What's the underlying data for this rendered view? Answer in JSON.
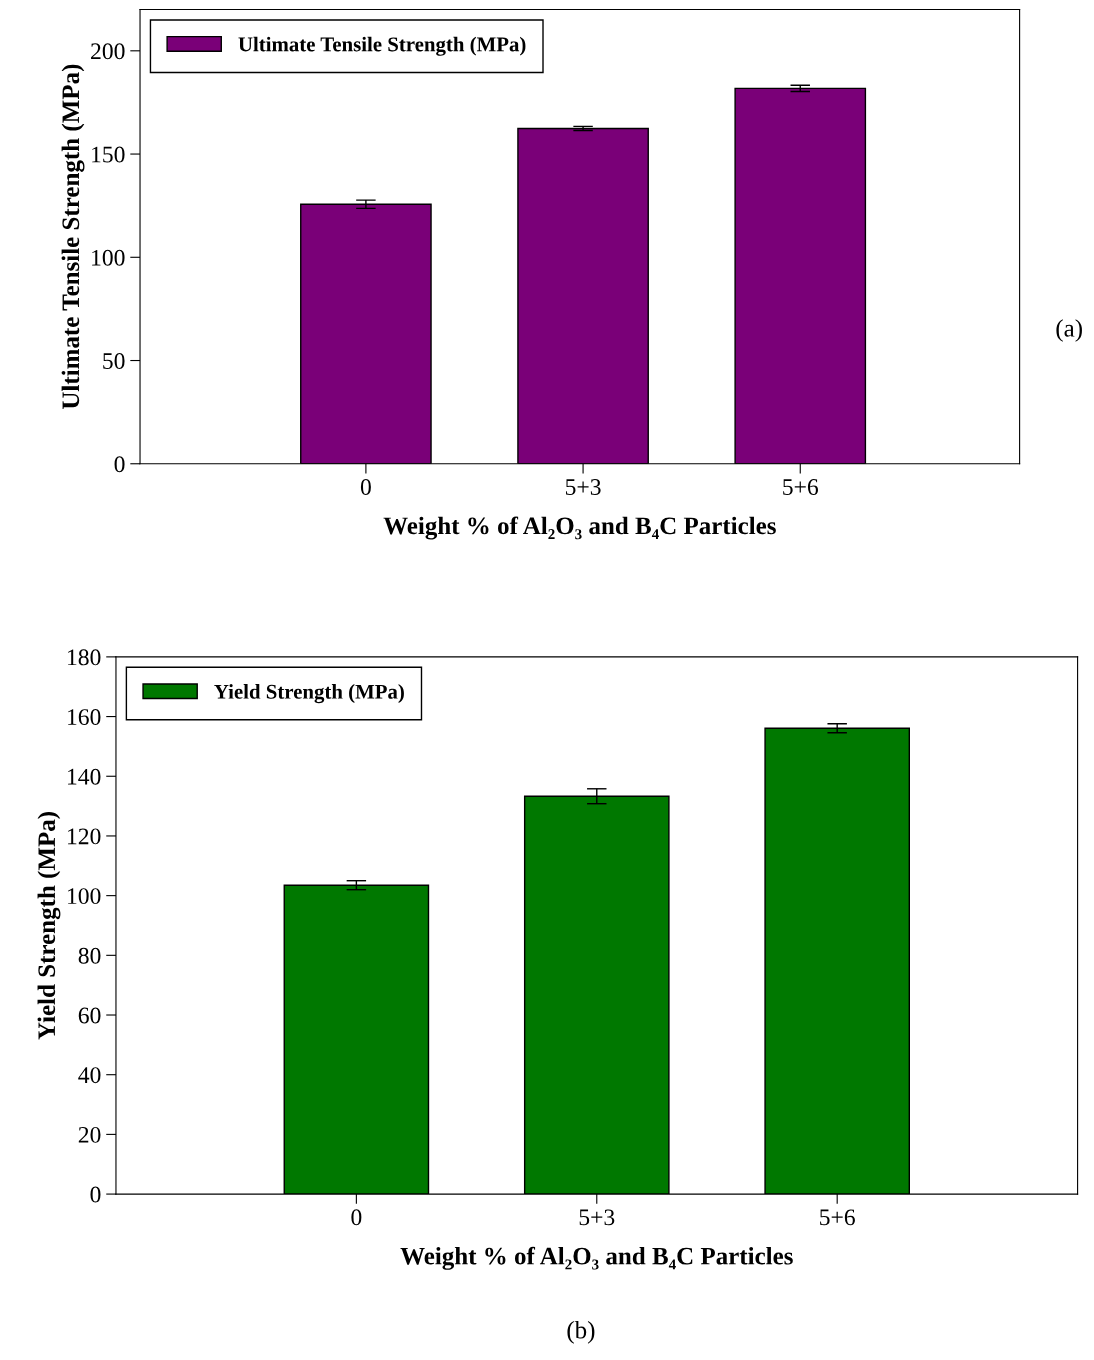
{
  "chart_data": [
    {
      "type": "bar",
      "categories": [
        "0",
        "5+3",
        "5+6"
      ],
      "xlabel": "Weight % of Al₂O₃ and B₄C Particles",
      "ylabel": "Ultimate Tensile Strength (MPa)",
      "ylim": [
        0,
        220
      ],
      "yticks": [
        0,
        50,
        100,
        150,
        200
      ],
      "legend": "top left",
      "grid": false,
      "annotations": [
        "(a)"
      ],
      "series": [
        {
          "name": "Ultimate Tensile Strength (MPa)",
          "color": "#7a0078",
          "values": [
            125.7,
            162.4,
            181.8
          ],
          "errors": [
            2,
            1,
            1.5
          ]
        }
      ]
    },
    {
      "type": "bar",
      "categories": [
        "0",
        "5+3",
        "5+6"
      ],
      "xlabel": "Weight % of Al₂O₃ and B₄C Particles",
      "ylabel": "Yield Strength (MPa)",
      "ylim": [
        0,
        180
      ],
      "yticks": [
        0,
        20,
        40,
        60,
        80,
        100,
        120,
        140,
        160,
        180
      ],
      "legend": "top left",
      "grid": false,
      "annotations": [
        "(b)"
      ],
      "series": [
        {
          "name": "Yield Strength (MPa)",
          "color": "#007800",
          "values": [
            103.5,
            133.3,
            156.1
          ],
          "errors": [
            1.5,
            2.5,
            1.5
          ]
        }
      ]
    }
  ]
}
